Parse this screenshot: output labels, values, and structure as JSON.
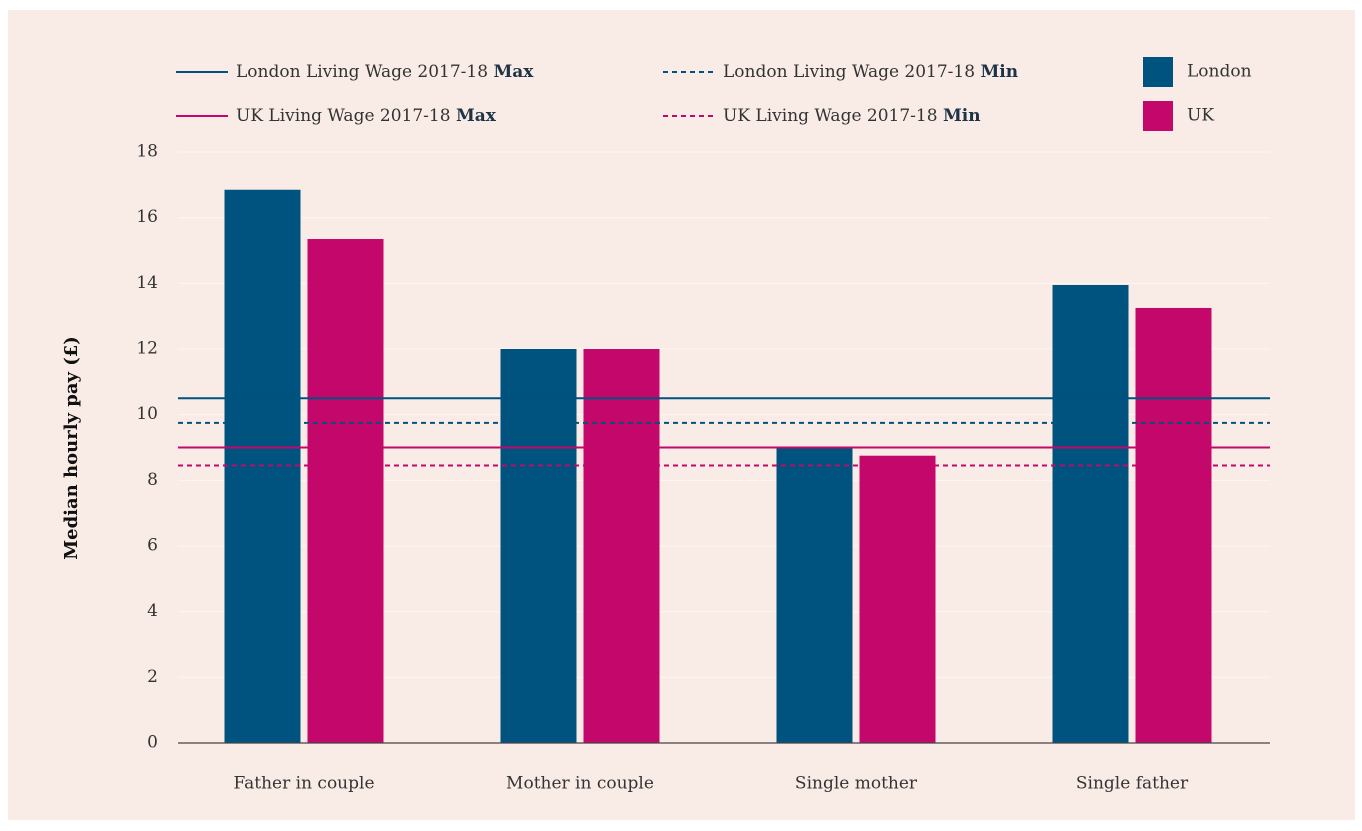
{
  "chart_data": {
    "type": "bar",
    "ylabel": "Median hourly pay (£)",
    "categories": [
      "Father in couple",
      "Mother in couple",
      "Single mother",
      "Single father"
    ],
    "series": [
      {
        "name": "London",
        "color": "#00527f",
        "values": [
          16.85,
          12,
          9,
          13.95
        ]
      },
      {
        "name": "UK",
        "color": "#c4086b",
        "values": [
          15.35,
          12,
          8.75,
          13.25
        ]
      }
    ],
    "reference_lines": [
      {
        "name": "London Living Wage 2017-18",
        "qualifier": "Max",
        "value": 10.5,
        "color": "#00527f",
        "style": "solid"
      },
      {
        "name": "London Living Wage 2017-18",
        "qualifier": "Min",
        "value": 9.75,
        "color": "#00527f",
        "style": "dashed"
      },
      {
        "name": "UK Living Wage 2017-18",
        "qualifier": "Max",
        "value": 9,
        "color": "#c4086b",
        "style": "solid"
      },
      {
        "name": "UK Living Wage 2017-18",
        "qualifier": "Min",
        "value": 8.45,
        "color": "#c4086b",
        "style": "dashed"
      }
    ],
    "ylim": [
      0,
      18
    ],
    "yticks": [
      0,
      2,
      4,
      6,
      8,
      10,
      12,
      14,
      16,
      18
    ],
    "grid": true
  }
}
